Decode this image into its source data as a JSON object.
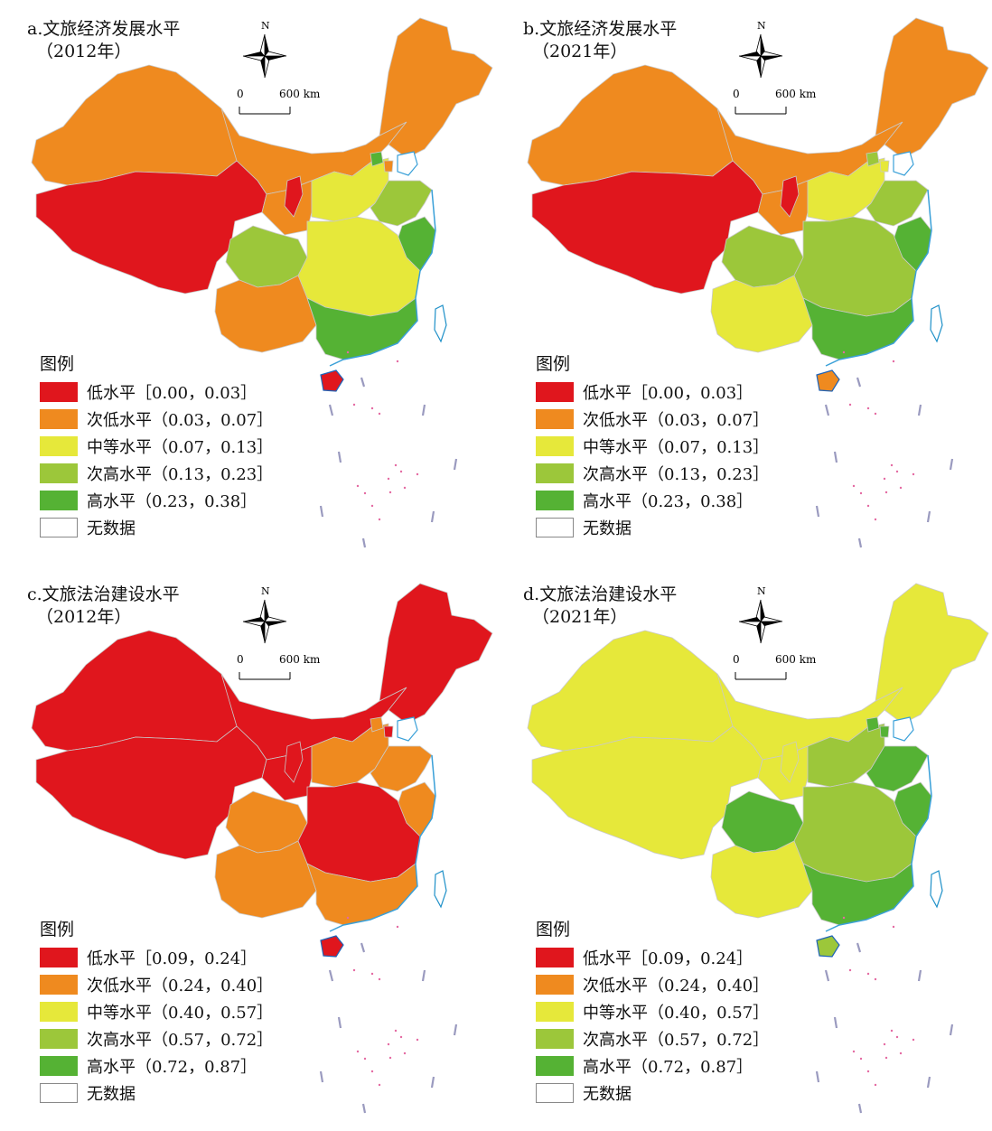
{
  "panels": [
    {
      "title_line1": "a.文旅经济发展水平",
      "title_line2": "（2012年）",
      "legend": {
        "heading": "图例",
        "entries": [
          {
            "label": "低水平［0.00，0.03］",
            "color": "#e0161d"
          },
          {
            "label": "次低水平（0.03，0.07］",
            "color": "#ef8a1f"
          },
          {
            "label": "中等水平（0.07，0.13］",
            "color": "#e6e83a"
          },
          {
            "label": "次高水平（0.13，0.23］",
            "color": "#9cc73a"
          },
          {
            "label": "高水平（0.23，0.38］",
            "color": "#55b234"
          }
        ],
        "nodata_label": "无数据"
      },
      "compass_label": "N",
      "scale": {
        "zero": "0",
        "distance": "600 km"
      },
      "map_colors": {
        "northeast": "#ef8a1f",
        "north_inner": "#ef8a1f",
        "xinjiang": "#ef8a1f",
        "tibet_qinghai": "#e0161d",
        "ningxia": "#e0161d",
        "gansu_shaanxi": "#ef8a1f",
        "north_china": "#e6e83a",
        "beijing": "#55b234",
        "tianjin": "#ef8a1f",
        "shandong_jiangsu": "#9cc73a",
        "shanghai_coast": "#55b234",
        "sichuan": "#9cc73a",
        "central": "#e6e83a",
        "yunnan_guizhou": "#ef8a1f",
        "guangdong": "#55b234",
        "hainan": "#e0161d"
      }
    },
    {
      "title_line1": "b.文旅经济发展水平",
      "title_line2": "（2021年）",
      "legend": {
        "heading": "图例",
        "entries": [
          {
            "label": "低水平［0.00，0.03］",
            "color": "#e0161d"
          },
          {
            "label": "次低水平（0.03，0.07］",
            "color": "#ef8a1f"
          },
          {
            "label": "中等水平（0.07，0.13］",
            "color": "#e6e83a"
          },
          {
            "label": "次高水平（0.13，0.23］",
            "color": "#9cc73a"
          },
          {
            "label": "高水平（0.23，0.38］",
            "color": "#55b234"
          }
        ],
        "nodata_label": "无数据"
      },
      "compass_label": "N",
      "scale": {
        "zero": "0",
        "distance": "600 km"
      },
      "map_colors": {
        "northeast": "#ef8a1f",
        "north_inner": "#ef8a1f",
        "xinjiang": "#ef8a1f",
        "tibet_qinghai": "#e0161d",
        "ningxia": "#e0161d",
        "gansu_shaanxi": "#ef8a1f",
        "north_china": "#e6e83a",
        "beijing": "#9cc73a",
        "tianjin": "#e6e83a",
        "shandong_jiangsu": "#9cc73a",
        "shanghai_coast": "#55b234",
        "sichuan": "#9cc73a",
        "central": "#9cc73a",
        "yunnan_guizhou": "#e6e83a",
        "guangdong": "#55b234",
        "hainan": "#ef8a1f"
      }
    },
    {
      "title_line1": "c.文旅法治建设水平",
      "title_line2": "（2012年）",
      "legend": {
        "heading": "图例",
        "entries": [
          {
            "label": "低水平［0.09，0.24］",
            "color": "#e0161d"
          },
          {
            "label": "次低水平（0.24，0.40］",
            "color": "#ef8a1f"
          },
          {
            "label": "中等水平（0.40，0.57］",
            "color": "#e6e83a"
          },
          {
            "label": "次高水平（0.57，0.72］",
            "color": "#9cc73a"
          },
          {
            "label": "高水平（0.72，0.87］",
            "color": "#55b234"
          }
        ],
        "nodata_label": "无数据"
      },
      "compass_label": "N",
      "scale": {
        "zero": "0",
        "distance": "600 km"
      },
      "map_colors": {
        "northeast": "#e0161d",
        "north_inner": "#e0161d",
        "xinjiang": "#e0161d",
        "tibet_qinghai": "#e0161d",
        "ningxia": "#e0161d",
        "gansu_shaanxi": "#e0161d",
        "north_china": "#ef8a1f",
        "beijing": "#ef8a1f",
        "tianjin": "#e0161d",
        "shandong_jiangsu": "#ef8a1f",
        "shanghai_coast": "#ef8a1f",
        "sichuan": "#ef8a1f",
        "central": "#e0161d",
        "yunnan_guizhou": "#ef8a1f",
        "guangdong": "#ef8a1f",
        "hainan": "#e0161d"
      }
    },
    {
      "title_line1": "d.文旅法治建设水平",
      "title_line2": "（2021年）",
      "legend": {
        "heading": "图例",
        "entries": [
          {
            "label": "低水平［0.09，0.24］",
            "color": "#e0161d"
          },
          {
            "label": "次低水平（0.24，0.40］",
            "color": "#ef8a1f"
          },
          {
            "label": "中等水平（0.40，0.57］",
            "color": "#e6e83a"
          },
          {
            "label": "次高水平（0.57，0.72］",
            "color": "#9cc73a"
          },
          {
            "label": "高水平（0.72，0.87］",
            "color": "#55b234"
          }
        ],
        "nodata_label": "无数据"
      },
      "compass_label": "N",
      "scale": {
        "zero": "0",
        "distance": "600 km"
      },
      "map_colors": {
        "northeast": "#e6e83a",
        "north_inner": "#e6e83a",
        "xinjiang": "#e6e83a",
        "tibet_qinghai": "#e6e83a",
        "ningxia": "#e6e83a",
        "gansu_shaanxi": "#e6e83a",
        "north_china": "#9cc73a",
        "beijing": "#55b234",
        "tianjin": "#55b234",
        "shandong_jiangsu": "#55b234",
        "shanghai_coast": "#55b234",
        "sichuan": "#55b234",
        "central": "#9cc73a",
        "yunnan_guizhou": "#e6e83a",
        "guangdong": "#55b234",
        "hainan": "#9cc73a"
      }
    }
  ]
}
